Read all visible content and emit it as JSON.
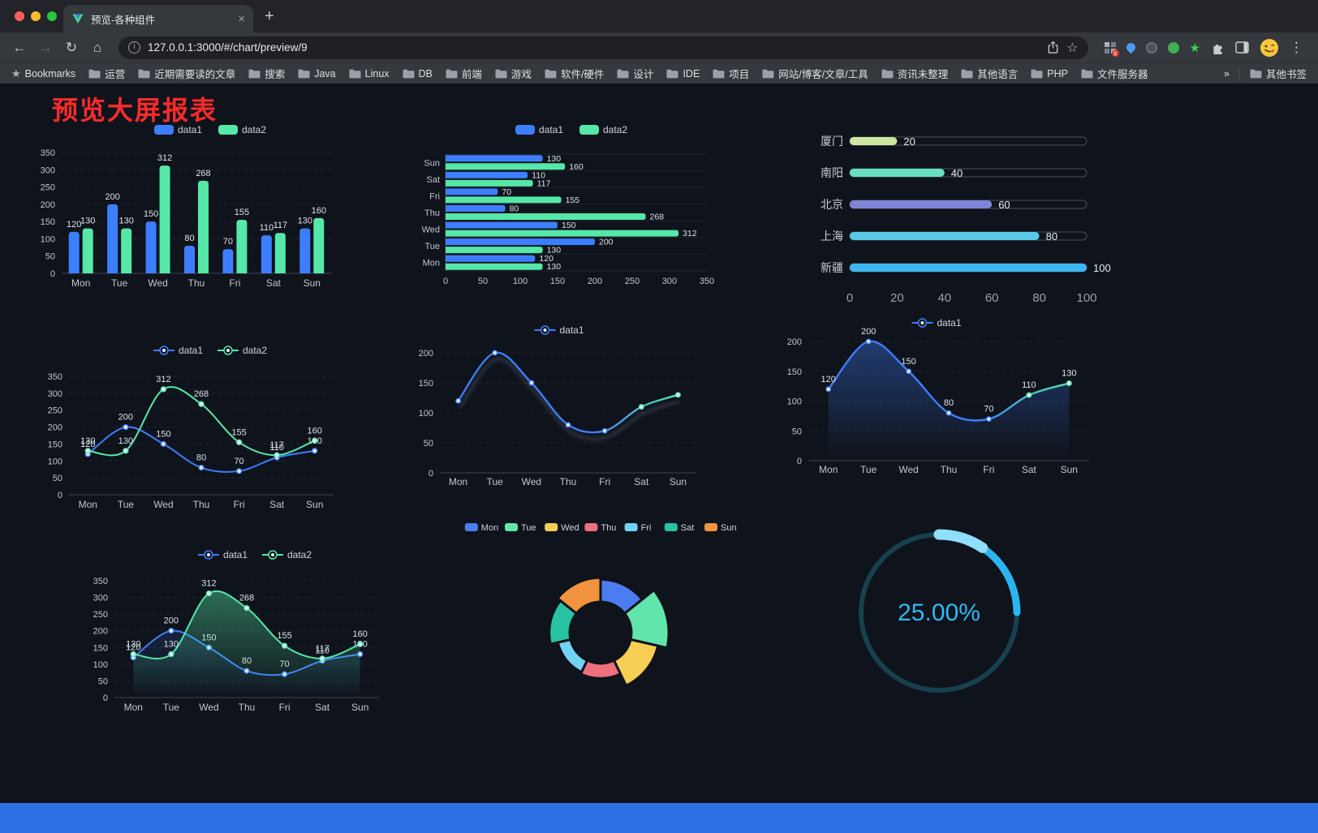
{
  "window": {
    "tab_title": "预览-各种组件",
    "url": "127.0.0.1:3000/#/chart/preview/9"
  },
  "bookmarks": {
    "label": "Bookmarks",
    "items": [
      "运营",
      "近期需要读的文章",
      "搜索",
      "Java",
      "Linux",
      "DB",
      "前端",
      "游戏",
      "软件/硬件",
      "设计",
      "IDE",
      "项目",
      "网站/博客/文章/工具",
      "资讯未整理",
      "其他语言",
      "PHP",
      "文件服务器"
    ],
    "overflow": "»",
    "other": "其他书签"
  },
  "page": {
    "title": "预览大屏报表",
    "title_color": "#ff2b2b",
    "background": "#0f131b",
    "footer_color": "#2d6fe3"
  },
  "chart_data": [
    {
      "id": "bar-grouped",
      "type": "bar",
      "categories": [
        "Mon",
        "Tue",
        "Wed",
        "Thu",
        "Fri",
        "Sat",
        "Sun"
      ],
      "series": [
        {
          "name": "data1",
          "color": "#3D7EFF",
          "values": [
            120,
            200,
            150,
            80,
            70,
            110,
            130
          ]
        },
        {
          "name": "data2",
          "color": "#55E8A8",
          "values": [
            130,
            130,
            312,
            268,
            155,
            117,
            160
          ]
        }
      ],
      "ylim": [
        0,
        350
      ],
      "yticks": [
        0,
        50,
        100,
        150,
        200,
        250,
        300,
        350
      ],
      "legend_position": "top",
      "grid": true
    },
    {
      "id": "bar-horizontal",
      "type": "bar",
      "orientation": "horizontal",
      "categories": [
        "Mon",
        "Tue",
        "Wed",
        "Thu",
        "Fri",
        "Sat",
        "Sun"
      ],
      "series": [
        {
          "name": "data1",
          "color": "#3D7EFF",
          "values": [
            120,
            200,
            150,
            80,
            70,
            110,
            130
          ]
        },
        {
          "name": "data2",
          "color": "#55E8A8",
          "values": [
            130,
            130,
            312,
            268,
            155,
            117,
            160
          ]
        }
      ],
      "xlim": [
        0,
        350
      ],
      "xticks": [
        0,
        50,
        100,
        150,
        200,
        250,
        300,
        350
      ],
      "legend_position": "top"
    },
    {
      "id": "progress-bars",
      "type": "bar",
      "style": "progress-pill",
      "categories": [
        "厦门",
        "南阳",
        "北京",
        "上海",
        "新疆"
      ],
      "values": [
        20,
        40,
        60,
        80,
        100
      ],
      "colors": [
        "#CDE6A0",
        "#67E0C1",
        "#7F84D9",
        "#58C8E6",
        "#3EB7F0"
      ],
      "xlim": [
        0,
        100
      ],
      "xticks": [
        0,
        20,
        40,
        60,
        80,
        100
      ]
    },
    {
      "id": "line-two-series",
      "type": "line",
      "categories": [
        "Mon",
        "Tue",
        "Wed",
        "Thu",
        "Fri",
        "Sat",
        "Sun"
      ],
      "series": [
        {
          "name": "data1",
          "color": "#3D7EFF",
          "values": [
            120,
            200,
            150,
            80,
            70,
            110,
            130
          ]
        },
        {
          "name": "data2",
          "color": "#55E8A8",
          "values": [
            130,
            130,
            312,
            268,
            155,
            117,
            160
          ]
        }
      ],
      "ylim": [
        0,
        350
      ],
      "yticks": [
        0,
        50,
        100,
        150,
        200,
        250,
        300,
        350
      ],
      "point_labels": true,
      "legend_position": "top"
    },
    {
      "id": "line-gradient",
      "type": "line",
      "categories": [
        "Mon",
        "Tue",
        "Wed",
        "Thu",
        "Fri",
        "Sat",
        "Sun"
      ],
      "series": [
        {
          "name": "data1",
          "color_start": "#3D7EFF",
          "color_end": "#55E8A8",
          "values": [
            120,
            200,
            150,
            80,
            70,
            110,
            130
          ]
        }
      ],
      "ylim": [
        0,
        200
      ],
      "yticks": [
        0,
        50,
        100,
        150,
        200
      ],
      "point_labels": false,
      "legend_position": "top"
    },
    {
      "id": "area-single",
      "type": "area",
      "categories": [
        "Mon",
        "Tue",
        "Wed",
        "Thu",
        "Fri",
        "Sat",
        "Sun"
      ],
      "series": [
        {
          "name": "data1",
          "color_start": "#3D7EFF",
          "color_end": "#55E8A8",
          "values": [
            120,
            200,
            150,
            80,
            70,
            110,
            130
          ]
        }
      ],
      "ylim": [
        0,
        200
      ],
      "yticks": [
        0,
        50,
        100,
        150,
        200
      ],
      "point_labels": true,
      "legend_position": "top"
    },
    {
      "id": "area-two-series",
      "type": "area",
      "categories": [
        "Mon",
        "Tue",
        "Wed",
        "Thu",
        "Fri",
        "Sat",
        "Sun"
      ],
      "series": [
        {
          "name": "data1",
          "color": "#3D7EFF",
          "values": [
            120,
            200,
            150,
            80,
            70,
            110,
            130
          ]
        },
        {
          "name": "data2",
          "color": "#55E8A8",
          "values": [
            130,
            130,
            312,
            268,
            155,
            117,
            160
          ]
        }
      ],
      "ylim": [
        0,
        350
      ],
      "yticks": [
        0,
        50,
        100,
        150,
        200,
        250,
        300,
        350
      ],
      "point_labels": true,
      "legend_position": "top"
    },
    {
      "id": "rose-pie",
      "type": "pie",
      "style": "nightingale-rose",
      "categories": [
        "Mon",
        "Tue",
        "Wed",
        "Thu",
        "Fri",
        "Sat",
        "Sun"
      ],
      "values": [
        120,
        200,
        150,
        80,
        70,
        110,
        130
      ],
      "colors": [
        "#4D7CF0",
        "#62E5AC",
        "#F6CE54",
        "#EE6F7E",
        "#72D3F6",
        "#27C3A2",
        "#F2933F"
      ],
      "legend_position": "top"
    },
    {
      "id": "gauge",
      "type": "gauge",
      "percent": 25,
      "value_label": "25.00%",
      "accent": "#2AB5F0",
      "accent_light": "#8FDEFB",
      "track": "#17414E"
    }
  ]
}
